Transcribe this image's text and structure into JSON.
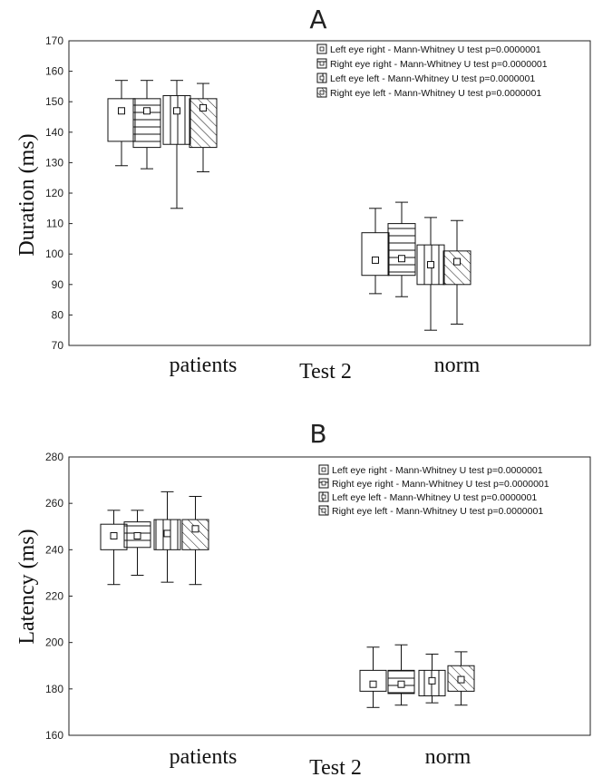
{
  "chart_data": [
    {
      "type": "box",
      "panel_label": "A",
      "xlabel": "Test 2",
      "ylabel": "Duration (ms)",
      "ylim": [
        70,
        170
      ],
      "yticks": [
        70,
        80,
        90,
        100,
        110,
        120,
        130,
        140,
        150,
        160,
        170
      ],
      "groups": [
        "patients",
        "norm"
      ],
      "legend_position": "top-right",
      "series": [
        {
          "name": "Left eye right - Mann-Whitney U test p=0.0000001",
          "fill": "empty",
          "boxes": [
            {
              "group": "patients",
              "min": 129,
              "q1": 137,
              "median": 147,
              "q3": 151,
              "max": 157
            },
            {
              "group": "norm",
              "min": 87,
              "q1": 93,
              "median": 98,
              "q3": 107,
              "max": 115
            }
          ]
        },
        {
          "name": "Right eye right - Mann-Whitney U test p=0.0000001",
          "fill": "horizontal-lines",
          "boxes": [
            {
              "group": "patients",
              "min": 128,
              "q1": 135,
              "median": 147,
              "q3": 151,
              "max": 157
            },
            {
              "group": "norm",
              "min": 86,
              "q1": 93,
              "median": 98.5,
              "q3": 110,
              "max": 117
            }
          ]
        },
        {
          "name": "Left eye left - Mann-Whitney U test p=0.0000001",
          "fill": "vertical-lines",
          "boxes": [
            {
              "group": "patients",
              "min": 115,
              "q1": 136,
              "median": 147,
              "q3": 152,
              "max": 157
            },
            {
              "group": "norm",
              "min": 75,
              "q1": 90,
              "median": 96.5,
              "q3": 103,
              "max": 112
            }
          ]
        },
        {
          "name": "Right eye left - Mann-Whitney U test p=0.0000001",
          "fill": "diagonal-hatch",
          "boxes": [
            {
              "group": "patients",
              "min": 127,
              "q1": 135,
              "median": 148,
              "q3": 151,
              "max": 156
            },
            {
              "group": "norm",
              "min": 77,
              "q1": 90,
              "median": 97.5,
              "q3": 101,
              "max": 111
            }
          ]
        }
      ]
    },
    {
      "type": "box",
      "panel_label": "B",
      "xlabel": "Test 2",
      "ylabel": "Latency (ms)",
      "ylim": [
        160,
        280
      ],
      "yticks": [
        160,
        180,
        200,
        220,
        240,
        260,
        280
      ],
      "groups": [
        "patients",
        "norm"
      ],
      "legend_position": "top-right",
      "series": [
        {
          "name": "Left eye right - Mann-Whitney U test p=0.0000001",
          "fill": "empty",
          "boxes": [
            {
              "group": "patients",
              "min": 225,
              "q1": 240,
              "median": 246,
              "q3": 251,
              "max": 257
            },
            {
              "group": "norm",
              "min": 172,
              "q1": 179,
              "median": 182,
              "q3": 188,
              "max": 198
            }
          ]
        },
        {
          "name": "Right eye right - Mann-Whitney U test p=0.0000001",
          "fill": "horizontal-lines",
          "boxes": [
            {
              "group": "patients",
              "min": 229,
              "q1": 241,
              "median": 246,
              "q3": 252,
              "max": 257
            },
            {
              "group": "norm",
              "min": 173,
              "q1": 178,
              "median": 182,
              "q3": 188,
              "max": 199
            }
          ]
        },
        {
          "name": "Left eye left - Mann-Whitney U test p=0.0000001",
          "fill": "vertical-lines",
          "boxes": [
            {
              "group": "patients",
              "min": 226,
              "q1": 240,
              "median": 247,
              "q3": 253,
              "max": 265
            },
            {
              "group": "norm",
              "min": 174,
              "q1": 177,
              "median": 183.5,
              "q3": 188,
              "max": 195
            }
          ]
        },
        {
          "name": "Right eye left - Mann-Whitney U test p=0.0000001",
          "fill": "diagonal-hatch",
          "boxes": [
            {
              "group": "patients",
              "min": 225,
              "q1": 240,
              "median": 249,
              "q3": 253,
              "max": 263
            },
            {
              "group": "norm",
              "min": 173,
              "q1": 179,
              "median": 184,
              "q3": 190,
              "max": 196
            }
          ]
        }
      ]
    }
  ]
}
